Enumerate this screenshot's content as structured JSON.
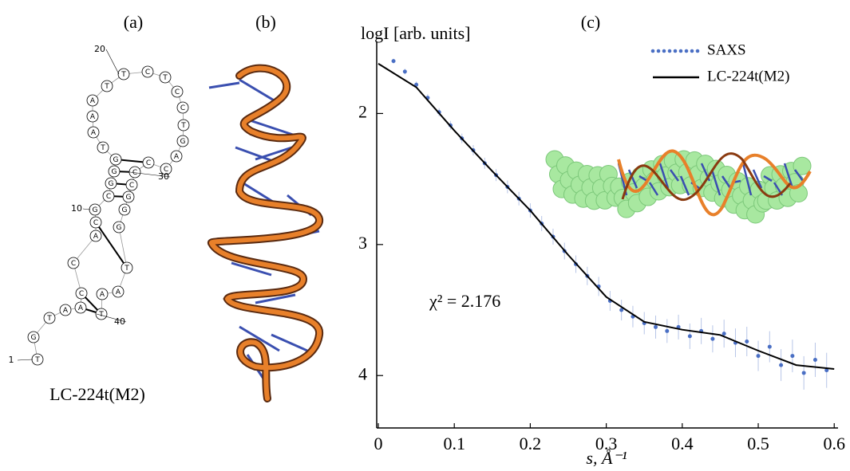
{
  "panel_labels": [
    "(a)",
    "(b)",
    "(c)"
  ],
  "structure": {
    "nucleotides": [
      "T",
      "G",
      "T",
      "A",
      "A",
      "C",
      "C",
      "A",
      "C",
      "G",
      "C",
      "G",
      "G",
      "G",
      "T",
      "A",
      "A",
      "A",
      "T",
      "T",
      "C",
      "T",
      "C",
      "C",
      "T",
      "G",
      "A",
      "C",
      "C",
      "C",
      "C",
      "G",
      "G",
      "G",
      "T",
      "A",
      "A",
      "T"
    ],
    "numbers": [
      1,
      10,
      20,
      30,
      40
    ],
    "name": "LC-224t(M2)"
  },
  "chart_data": {
    "type": "scatter",
    "ylabel": "logI [arb. units]",
    "xlabel": "s, Å⁻¹",
    "annotation": "χ² = 2.176",
    "xlim": [
      0,
      0.605
    ],
    "ylim": [
      4.4,
      1.45
    ],
    "xticks": [
      0,
      0.1,
      0.2,
      0.3,
      0.4,
      0.5,
      0.6
    ],
    "yticks": [
      2,
      3,
      4
    ],
    "legend": "top-right",
    "series": [
      {
        "name": "SAXS",
        "style": "points",
        "color": "#4a6fc4",
        "x": [
          0.02,
          0.035,
          0.05,
          0.065,
          0.08,
          0.095,
          0.11,
          0.125,
          0.14,
          0.155,
          0.17,
          0.185,
          0.2,
          0.215,
          0.23,
          0.245,
          0.26,
          0.275,
          0.29,
          0.305,
          0.32,
          0.335,
          0.35,
          0.365,
          0.38,
          0.395,
          0.41,
          0.425,
          0.44,
          0.455,
          0.47,
          0.485,
          0.5,
          0.515,
          0.53,
          0.545,
          0.56,
          0.575,
          0.59
        ],
        "values": [
          1.6,
          1.68,
          1.78,
          1.88,
          1.99,
          2.09,
          2.19,
          2.28,
          2.38,
          2.47,
          2.56,
          2.65,
          2.74,
          2.84,
          2.94,
          3.05,
          3.15,
          3.24,
          3.32,
          3.43,
          3.5,
          3.55,
          3.6,
          3.63,
          3.66,
          3.63,
          3.7,
          3.66,
          3.72,
          3.68,
          3.75,
          3.74,
          3.85,
          3.78,
          3.92,
          3.85,
          3.98,
          3.88,
          3.96
        ]
      },
      {
        "name": "LC-224t(M2)",
        "style": "line",
        "color": "#000000",
        "x": [
          0,
          0.05,
          0.1,
          0.15,
          0.2,
          0.25,
          0.3,
          0.35,
          0.4,
          0.45,
          0.5,
          0.55,
          0.6
        ],
        "values": [
          1.62,
          1.8,
          2.13,
          2.44,
          2.74,
          3.08,
          3.4,
          3.59,
          3.65,
          3.69,
          3.81,
          3.92,
          3.95
        ]
      }
    ]
  }
}
